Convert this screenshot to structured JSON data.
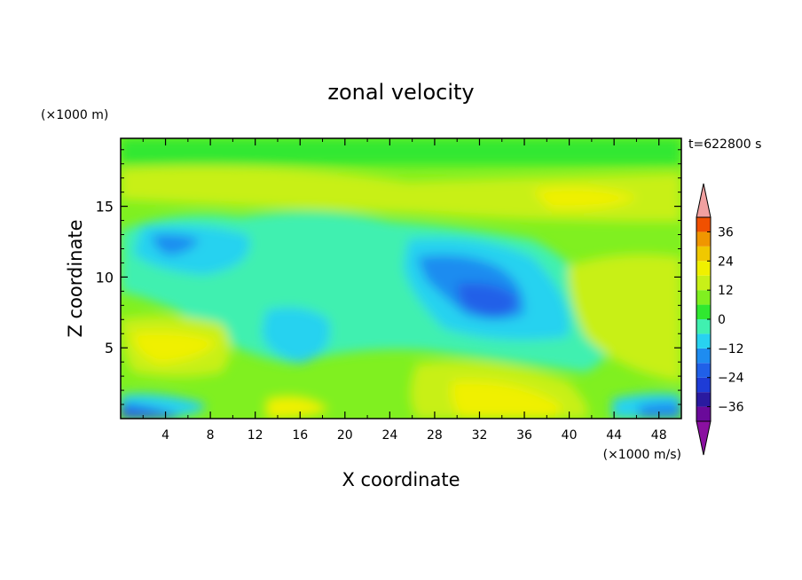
{
  "chart_data": {
    "type": "heatmap",
    "title": "zonal velocity",
    "xlabel": "X coordinate",
    "ylabel": "Z coordinate",
    "x_unit_label": "(×1000 m/s)",
    "y_unit_label": "(×1000 m)",
    "time_label": "t=622800 s",
    "xlim": [
      0,
      50
    ],
    "ylim": [
      0,
      19.8
    ],
    "x_ticks": [
      4,
      8,
      12,
      16,
      20,
      24,
      28,
      32,
      36,
      40,
      44,
      48
    ],
    "y_ticks": [
      5,
      10,
      15
    ],
    "colorbar": {
      "levels": [
        -42,
        -36,
        -30,
        -24,
        -18,
        -12,
        -6,
        0,
        6,
        12,
        18,
        24,
        30,
        36,
        42
      ],
      "tick_labels": [
        "36",
        "24",
        "12",
        "0",
        "−12",
        "−24",
        "−36"
      ],
      "tick_values": [
        36,
        24,
        12,
        0,
        -12,
        -24,
        -36
      ],
      "colors": [
        "#6a0a9a",
        "#2a1aa0",
        "#1e3cd6",
        "#2060e8",
        "#1e8cf0",
        "#28d2f0",
        "#40f0b0",
        "#30e830",
        "#80f020",
        "#c8f018",
        "#f0f000",
        "#f0c800",
        "#f09600",
        "#f05000",
        "#e01010"
      ],
      "extend_low_color": "#8a10a0",
      "extend_high_color": "#f0a0a0"
    },
    "field_features": [
      {
        "description_value": -27,
        "x": 30.5,
        "z": 8.5
      },
      {
        "description_value": -20,
        "x": 29,
        "z": 10.5
      },
      {
        "description_value": -20,
        "x": 5,
        "z": 12.5
      },
      {
        "description_value": -12,
        "x": 16.5,
        "z": 6
      },
      {
        "description_value": 15,
        "x": 4,
        "z": 5
      },
      {
        "description_value": 15,
        "x": 35,
        "z": 1.2
      },
      {
        "description_value": 12,
        "x": 41,
        "z": 16.2
      },
      {
        "description_value": -28,
        "x": 1,
        "z": 0.3
      }
    ]
  }
}
